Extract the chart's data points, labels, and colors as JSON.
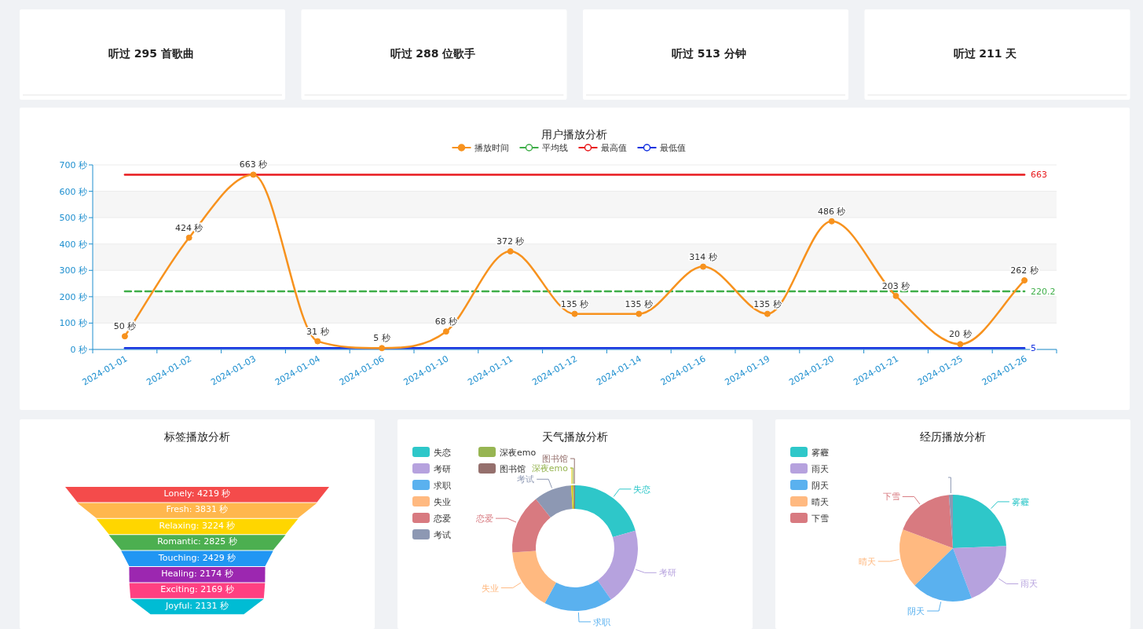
{
  "chart_data": [
    {
      "type": "other",
      "annotations": [
        "听过 295 首歌曲",
        "听过 288 位歌手",
        "听过 513 分钟",
        "听过 211 天"
      ]
    },
    {
      "type": "line",
      "title": "用户播放分析",
      "categories": [
        "2024-01-01",
        "2024-01-02",
        "2024-01-03",
        "2024-01-04",
        "2024-01-06",
        "2024-01-10",
        "2024-01-11",
        "2024-01-12",
        "2024-01-14",
        "2024-01-16",
        "2024-01-19",
        "2024-01-20",
        "2024-01-21",
        "2024-01-25",
        "2024-01-26"
      ],
      "series": [
        {
          "name": "播放时间",
          "color": "#f7921e",
          "marker": "circle",
          "values": [
            50,
            424,
            663,
            31,
            5,
            68,
            372,
            135,
            135,
            314,
            135,
            486,
            203,
            20,
            262
          ],
          "value_labels": [
            "50 秒",
            "424 秒",
            "663 秒",
            "31 秒",
            "5 秒",
            "68 秒",
            "372 秒",
            "135 秒",
            "135 秒",
            "314 秒",
            "135 秒",
            "486 秒",
            "203 秒",
            "20 秒",
            "262 秒"
          ]
        },
        {
          "name": "平均线",
          "color": "#3fae49",
          "marker": "none",
          "line_style": "dashed",
          "values": [
            220.2,
            220.2,
            220.2,
            220.2,
            220.2,
            220.2,
            220.2,
            220.2,
            220.2,
            220.2,
            220.2,
            220.2,
            220.2,
            220.2,
            220.2
          ],
          "value_labels": [
            null,
            null,
            null,
            null,
            null,
            null,
            null,
            null,
            null,
            null,
            null,
            null,
            null,
            null,
            "220.2"
          ]
        },
        {
          "name": "最高值",
          "color": "#e8191c",
          "marker": "none",
          "line_style": "solid",
          "values": [
            663,
            663,
            663,
            663,
            663,
            663,
            663,
            663,
            663,
            663,
            663,
            663,
            663,
            663,
            663
          ],
          "value_labels": [
            null,
            null,
            null,
            null,
            null,
            null,
            null,
            null,
            null,
            null,
            null,
            null,
            null,
            null,
            "663"
          ]
        },
        {
          "name": "最低值",
          "color": "#1432e0",
          "marker": "none",
          "line_style": "solid",
          "values": [
            5,
            5,
            5,
            5,
            5,
            5,
            5,
            5,
            5,
            5,
            5,
            5,
            5,
            5,
            5
          ],
          "value_labels": [
            null,
            null,
            null,
            null,
            null,
            null,
            null,
            null,
            null,
            null,
            null,
            null,
            null,
            null,
            "5"
          ]
        }
      ],
      "ylim": [
        0,
        700
      ],
      "yticks": [
        {
          "value": 0,
          "label": "0 秒"
        },
        {
          "value": 100,
          "label": "100 秒"
        },
        {
          "value": 200,
          "label": "200 秒"
        },
        {
          "value": 300,
          "label": "300 秒"
        },
        {
          "value": 400,
          "label": "400 秒"
        },
        {
          "value": 500,
          "label": "500 秒"
        },
        {
          "value": 600,
          "label": "600 秒"
        },
        {
          "value": 700,
          "label": "700 秒"
        }
      ],
      "grid": "y",
      "legend": "top"
    },
    {
      "type": "other",
      "title": "标签播放分析",
      "values": [
        4219,
        3831,
        3224,
        2825,
        2429,
        2174,
        2169,
        2131
      ],
      "colors": [
        "#f44b4b",
        "#ffb74d",
        "#ffd600",
        "#4caf50",
        "#2196f3",
        "#9c27b0",
        "#ff4081",
        "#00bcd4"
      ],
      "value_labels": [
        "Lonely: 4219 秒",
        "Fresh: 3831 秒",
        "Relaxing: 3224 秒",
        "Romantic: 2825 秒",
        "Touching: 2429 秒",
        "Healing: 2174 秒",
        "Exciting: 2169 秒",
        "Joyful: 2131 秒"
      ]
    },
    {
      "type": "donut",
      "title": "天气播放分析",
      "categories": [
        "失恋",
        "考研",
        "求职",
        "失业",
        "恋爱",
        "考试",
        null,
        "深夜emo",
        "图书馆"
      ],
      "values": [
        20.5,
        19.8,
        17.7,
        15.9,
        15.4,
        9.7,
        0.4,
        0.3,
        0.3
      ],
      "colors": [
        "#2ec7c9",
        "#b6a2de",
        "#5ab1ef",
        "#ffb980",
        "#d87a80",
        "#8d98b3",
        "#e5cf0d",
        "#97b552",
        "#95706d"
      ],
      "legend": "top left"
    },
    {
      "type": "pie",
      "title": "经历播放分析",
      "categories": [
        "雾霾",
        "雨天",
        "阴天",
        "晴天",
        "下雪",
        null
      ],
      "values": [
        24.4,
        19.9,
        18.4,
        18.0,
        18.1,
        1.2
      ],
      "colors": [
        "#2ec7c9",
        "#b6a2de",
        "#5ab1ef",
        "#ffb980",
        "#d87a80",
        "#8d98b3"
      ],
      "legend": "top left"
    }
  ]
}
